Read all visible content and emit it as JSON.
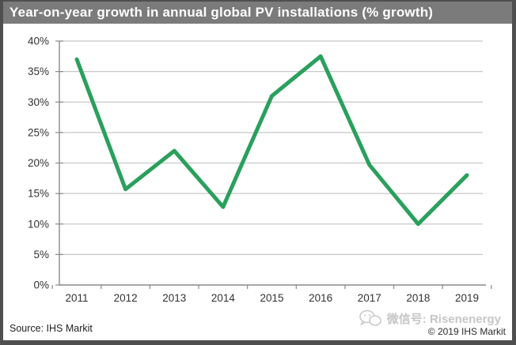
{
  "header": {
    "title": "Year-on-year growth in annual global PV installations (% growth)"
  },
  "footer": {
    "source": "Source: IHS Markit",
    "copyright": "© 2019 IHS Markit"
  },
  "watermark": {
    "wechat_label": "微信号: Risenenergy",
    "icon": "wechat-icon"
  },
  "colors": {
    "header_bg": "#7b7b7b",
    "header_text": "#ffffff",
    "frame_border": "#4f4f4f",
    "line": "#2aa05c",
    "grid": "#c8c8c8",
    "axis": "#8a8a8a",
    "tick_label": "#333333",
    "watermark": "#c6c6c6"
  },
  "chart_data": {
    "type": "line",
    "title": "Year-on-year growth in annual global PV installations (% growth)",
    "categories": [
      "2011",
      "2012",
      "2013",
      "2014",
      "2015",
      "2016",
      "2017",
      "2018",
      "2019"
    ],
    "values": [
      37,
      15.7,
      22,
      12.8,
      31,
      37.5,
      19.7,
      10,
      18
    ],
    "series_name": "YoY growth of annual global PV installations",
    "xlabel": "",
    "ylabel": "",
    "ylim": [
      0,
      40
    ],
    "y_tick_step": 5,
    "y_tick_labels": [
      "0%",
      "5%",
      "10%",
      "15%",
      "20%",
      "25%",
      "30%",
      "35%",
      "40%"
    ],
    "grid": true,
    "legend": false
  }
}
